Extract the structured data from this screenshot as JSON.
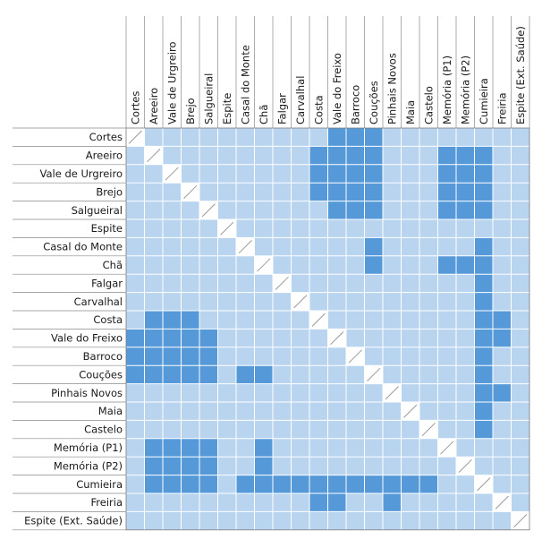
{
  "chart_data": {
    "type": "heatmap",
    "title": "",
    "labels": [
      "Cortes",
      "Areeiro",
      "Vale de Urgreiro",
      "Brejo",
      "Salgueiral",
      "Espite",
      "Casal do Monte",
      "Chã",
      "Falgar",
      "Carvalhal",
      "Costa",
      "Vale do Freixo",
      "Barroco",
      "Couções",
      "Pinhais Novos",
      "Maia",
      "Castelo",
      "Memória (P1)",
      "Memória (P2)",
      "Cumieira",
      "Freiria",
      "Espite (Ext. Saúde)"
    ],
    "colors": {
      "high": "#5699d9",
      "low": "#b9d4ef",
      "diagonal": "#ffffff",
      "grid": "#ffffff"
    },
    "legend": "none",
    "grid": true,
    "matrix": [
      [
        0,
        0,
        0,
        0,
        0,
        0,
        0,
        0,
        0,
        0,
        0,
        1,
        1,
        1,
        0,
        0,
        0,
        0,
        0,
        0,
        0,
        0
      ],
      [
        0,
        0,
        0,
        0,
        0,
        0,
        0,
        0,
        0,
        0,
        1,
        1,
        1,
        1,
        0,
        0,
        0,
        1,
        1,
        1,
        0,
        0
      ],
      [
        0,
        0,
        0,
        0,
        0,
        0,
        0,
        0,
        0,
        0,
        1,
        1,
        1,
        1,
        0,
        0,
        0,
        1,
        1,
        1,
        0,
        0
      ],
      [
        0,
        0,
        0,
        0,
        0,
        0,
        0,
        0,
        0,
        0,
        1,
        1,
        1,
        1,
        0,
        0,
        0,
        1,
        1,
        1,
        0,
        0
      ],
      [
        0,
        0,
        0,
        0,
        0,
        0,
        0,
        0,
        0,
        0,
        0,
        1,
        1,
        1,
        0,
        0,
        0,
        1,
        1,
        1,
        0,
        0
      ],
      [
        0,
        0,
        0,
        0,
        0,
        0,
        0,
        0,
        0,
        0,
        0,
        0,
        0,
        0,
        0,
        0,
        0,
        0,
        0,
        0,
        0,
        0
      ],
      [
        0,
        0,
        0,
        0,
        0,
        0,
        0,
        0,
        0,
        0,
        0,
        0,
        0,
        1,
        0,
        0,
        0,
        0,
        0,
        1,
        0,
        0
      ],
      [
        0,
        0,
        0,
        0,
        0,
        0,
        0,
        0,
        0,
        0,
        0,
        0,
        0,
        1,
        0,
        0,
        0,
        1,
        1,
        1,
        0,
        0
      ],
      [
        0,
        0,
        0,
        0,
        0,
        0,
        0,
        0,
        0,
        0,
        0,
        0,
        0,
        0,
        0,
        0,
        0,
        0,
        0,
        1,
        0,
        0
      ],
      [
        0,
        0,
        0,
        0,
        0,
        0,
        0,
        0,
        0,
        0,
        0,
        0,
        0,
        0,
        0,
        0,
        0,
        0,
        0,
        1,
        0,
        0
      ],
      [
        0,
        1,
        1,
        1,
        0,
        0,
        0,
        0,
        0,
        0,
        0,
        0,
        0,
        0,
        0,
        0,
        0,
        0,
        0,
        1,
        1,
        0
      ],
      [
        1,
        1,
        1,
        1,
        1,
        0,
        0,
        0,
        0,
        0,
        0,
        0,
        0,
        0,
        0,
        0,
        0,
        0,
        0,
        1,
        1,
        0
      ],
      [
        1,
        1,
        1,
        1,
        1,
        0,
        0,
        0,
        0,
        0,
        0,
        0,
        0,
        0,
        0,
        0,
        0,
        0,
        0,
        1,
        0,
        0
      ],
      [
        1,
        1,
        1,
        1,
        1,
        0,
        1,
        1,
        0,
        0,
        0,
        0,
        0,
        0,
        0,
        0,
        0,
        0,
        0,
        1,
        0,
        0
      ],
      [
        0,
        0,
        0,
        0,
        0,
        0,
        0,
        0,
        0,
        0,
        0,
        0,
        0,
        0,
        0,
        0,
        0,
        0,
        0,
        1,
        1,
        0
      ],
      [
        0,
        0,
        0,
        0,
        0,
        0,
        0,
        0,
        0,
        0,
        0,
        0,
        0,
        0,
        0,
        0,
        0,
        0,
        0,
        1,
        0,
        0
      ],
      [
        0,
        0,
        0,
        0,
        0,
        0,
        0,
        0,
        0,
        0,
        0,
        0,
        0,
        0,
        0,
        0,
        0,
        0,
        0,
        1,
        0,
        0
      ],
      [
        0,
        1,
        1,
        1,
        1,
        0,
        0,
        1,
        0,
        0,
        0,
        0,
        0,
        0,
        0,
        0,
        0,
        0,
        0,
        0,
        0,
        0
      ],
      [
        0,
        1,
        1,
        1,
        1,
        0,
        0,
        1,
        0,
        0,
        0,
        0,
        0,
        0,
        0,
        0,
        0,
        0,
        0,
        0,
        0,
        0
      ],
      [
        0,
        1,
        1,
        1,
        1,
        0,
        1,
        1,
        1,
        1,
        1,
        1,
        1,
        1,
        1,
        1,
        1,
        0,
        0,
        0,
        0,
        0
      ],
      [
        0,
        0,
        0,
        0,
        0,
        0,
        0,
        0,
        0,
        0,
        1,
        1,
        0,
        0,
        1,
        0,
        0,
        0,
        0,
        0,
        0,
        0
      ],
      [
        0,
        0,
        0,
        0,
        0,
        0,
        0,
        0,
        0,
        0,
        0,
        0,
        0,
        0,
        0,
        0,
        0,
        0,
        0,
        0,
        0,
        0
      ]
    ]
  }
}
